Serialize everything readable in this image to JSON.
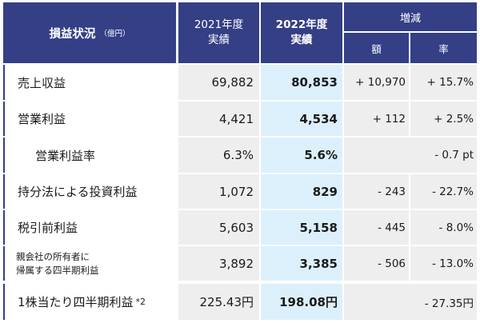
{
  "header": {
    "title": "損益状況",
    "unit": "（億円）",
    "col2021_line1": "2021年度",
    "col2021_line2": "実績",
    "col2022_line1": "2022年度",
    "col2022_line2": "実績",
    "change": "増減",
    "change_amount": "額",
    "change_rate": "率"
  },
  "rows": [
    {
      "label": "売上収益",
      "y2021": "69,882",
      "y2022": "80,853",
      "diff": "+ 10,970",
      "rate": "+ 15.7%"
    },
    {
      "label": "営業利益",
      "y2021": "4,421",
      "y2022": "4,534",
      "diff": "+ 112",
      "rate": "+ 2.5%"
    },
    {
      "label": "営業利益率",
      "y2021": "6.3%",
      "y2022": "5.6%",
      "change": "- 0.7 pt"
    },
    {
      "label": "持分法による投資利益",
      "y2021": "1,072",
      "y2022": "829",
      "diff": "- 243",
      "rate": "- 22.7%"
    },
    {
      "label": "税引前利益",
      "y2021": "5,603",
      "y2022": "5,158",
      "diff": "- 445",
      "rate": "- 8.0%"
    },
    {
      "label_line1": "親会社の所有者に",
      "label_line2": "帰属する四半期利益",
      "y2021": "3,892",
      "y2022": "3,385",
      "diff": "- 506",
      "rate": "- 13.0%"
    },
    {
      "label": "1株当たり四半期利益",
      "footnote": "*2",
      "y2021": "225.43円",
      "y2022": "198.08円",
      "change": "- 27.35円"
    }
  ],
  "colors": {
    "header": "#343f86",
    "highlight_2022": "#dcf0fb",
    "cell_gray": "#eeeeee"
  }
}
